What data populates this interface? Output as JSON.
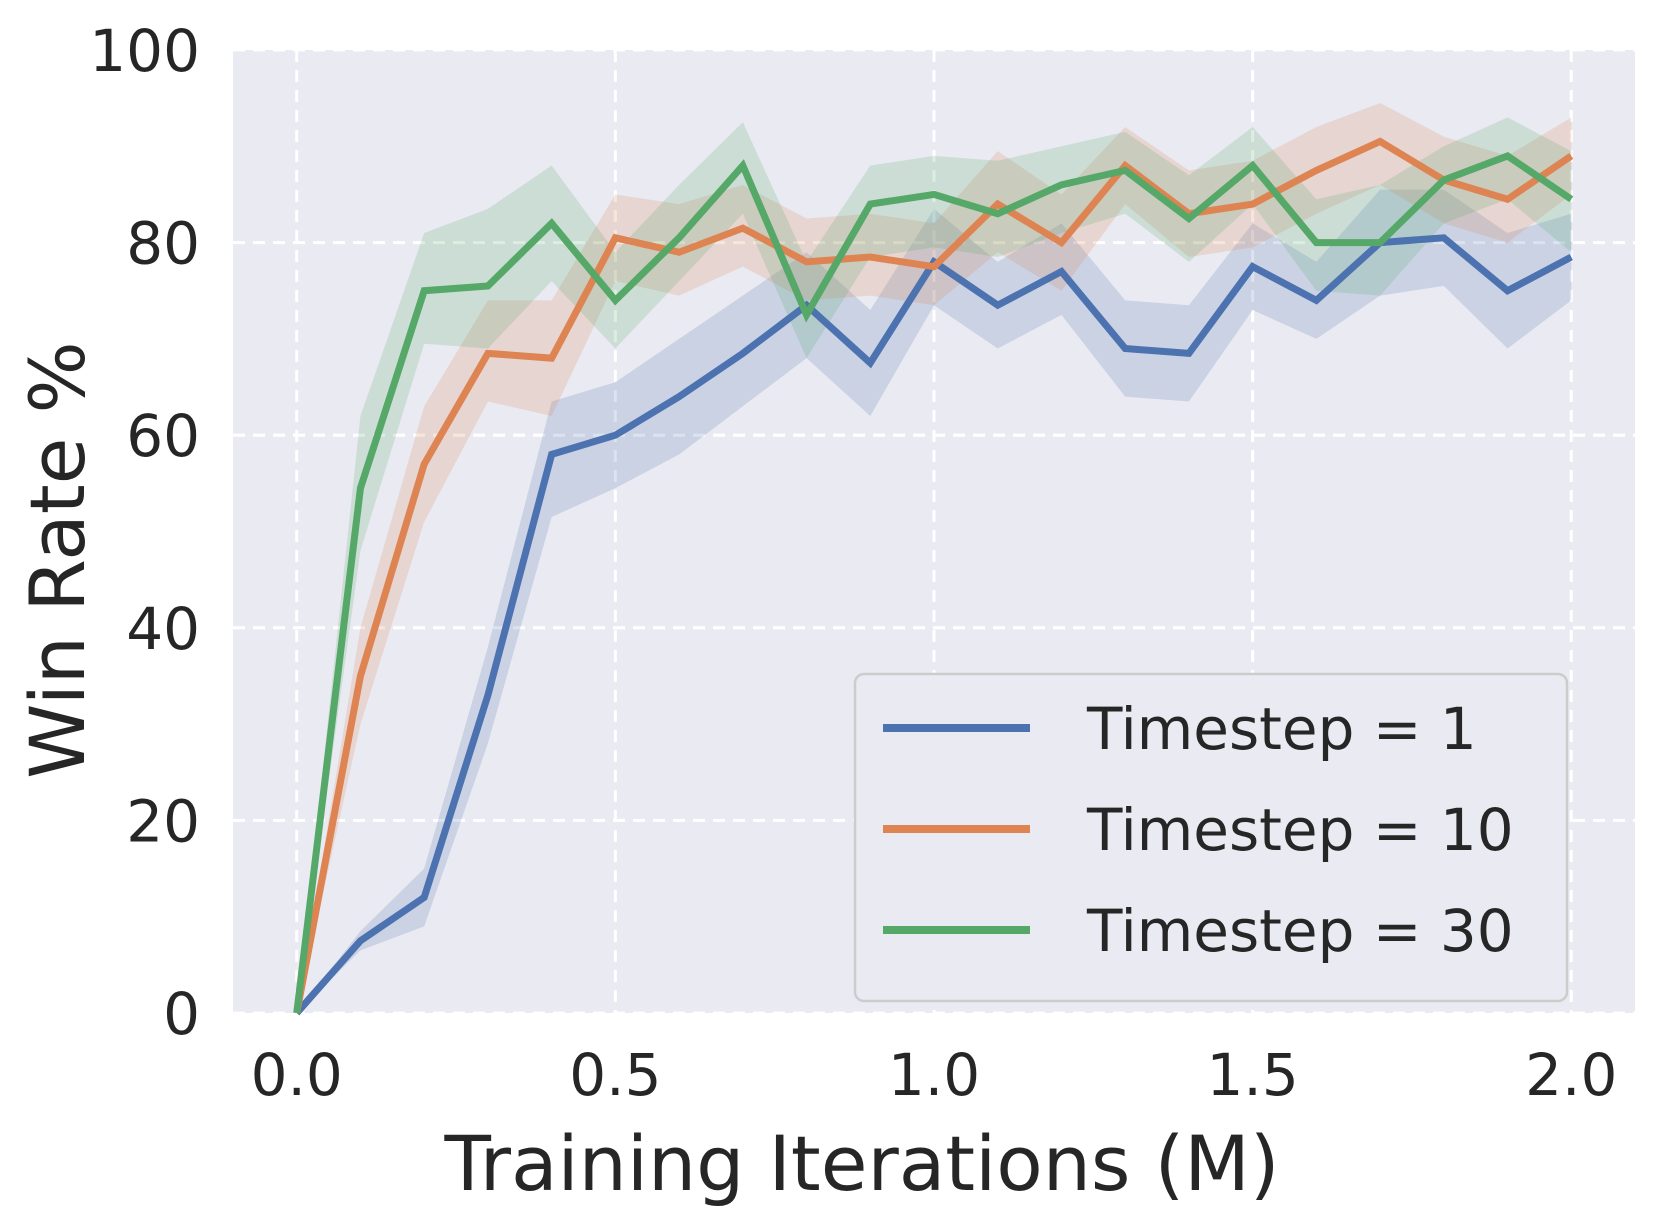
{
  "chart_data": {
    "type": "line",
    "title": "",
    "xlabel": "Training Iterations (M)",
    "ylabel": "Win Rate %",
    "xlim": [
      -0.1,
      2.1
    ],
    "ylim": [
      0,
      100
    ],
    "xticks": [
      0.0,
      0.5,
      1.0,
      1.5,
      2.0
    ],
    "xtick_labels": [
      "0.0",
      "0.5",
      "1.0",
      "1.5",
      "2.0"
    ],
    "yticks": [
      0,
      20,
      40,
      60,
      80,
      100
    ],
    "ytick_labels": [
      "0",
      "20",
      "40",
      "60",
      "80",
      "100"
    ],
    "grid": true,
    "legend_position": "lower-right",
    "x": [
      0.0,
      0.1,
      0.2,
      0.3,
      0.4,
      0.5,
      0.6,
      0.7,
      0.8,
      0.9,
      1.0,
      1.1,
      1.2,
      1.3,
      1.4,
      1.5,
      1.6,
      1.7,
      1.8,
      1.9,
      2.0
    ],
    "series": [
      {
        "name": "Timestep = 1",
        "color": "#4c72b0",
        "values": [
          0,
          7.5,
          12,
          33,
          58,
          60,
          64,
          68.5,
          73.5,
          67.5,
          78,
          73.5,
          77,
          69,
          68.5,
          77.5,
          74,
          80,
          80.5,
          75,
          78.5
        ],
        "lower": [
          0,
          6.5,
          9,
          28,
          51.5,
          54.5,
          58,
          63,
          68,
          62,
          73.5,
          69,
          72.5,
          64,
          63.5,
          73,
          70,
          74.5,
          75.5,
          69,
          74
        ],
        "upper": [
          0,
          8.5,
          15,
          38,
          63.5,
          65.5,
          70,
          74.5,
          79,
          73,
          83.5,
          78,
          82,
          74,
          73.5,
          82,
          78,
          85.5,
          85.5,
          81,
          83
        ]
      },
      {
        "name": "Timestep = 10",
        "color": "#dd8452",
        "values": [
          0,
          35,
          57,
          68.5,
          68,
          80.5,
          79,
          81.5,
          78,
          78.5,
          77.5,
          84,
          80,
          88,
          83,
          84,
          87.5,
          90.5,
          86.5,
          84.5,
          89
        ],
        "lower": [
          0,
          30,
          51,
          63.5,
          62,
          76,
          74.5,
          77.5,
          74,
          74.5,
          73.5,
          79,
          75,
          84,
          78.5,
          79.5,
          83,
          86,
          82,
          80,
          85
        ],
        "upper": [
          0,
          40,
          63,
          74,
          74,
          85,
          84,
          86,
          82.5,
          83,
          82,
          89.5,
          85,
          92,
          87.5,
          88.5,
          92,
          94.5,
          91,
          89,
          93
        ]
      },
      {
        "name": "Timestep = 30",
        "color": "#55a868",
        "values": [
          0,
          54.5,
          75,
          75.5,
          82,
          74,
          80.5,
          88,
          72.5,
          84,
          85,
          83,
          86,
          87.5,
          82.5,
          88,
          80,
          80,
          86.5,
          89,
          84.5
        ],
        "lower": [
          0,
          48,
          69.5,
          69,
          76,
          69,
          76,
          83,
          68,
          78.5,
          79.5,
          78.5,
          81,
          83,
          78,
          84,
          75,
          74.5,
          82,
          84.5,
          79
        ],
        "upper": [
          0,
          62,
          81,
          83.5,
          88,
          79,
          86,
          92.5,
          78,
          88,
          89,
          88.5,
          90,
          91.5,
          87,
          92,
          84.5,
          86,
          90,
          93,
          89.5
        ]
      }
    ]
  }
}
